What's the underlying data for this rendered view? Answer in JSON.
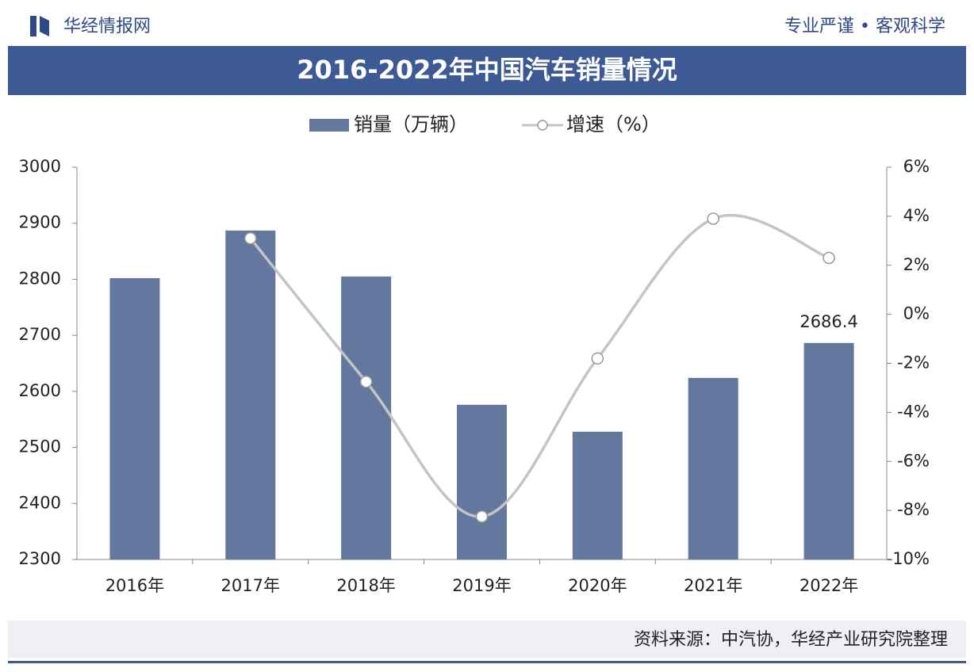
{
  "header": {
    "brand": "华经情报网",
    "slogan": "专业严谨 • 客观科学"
  },
  "chart_data": {
    "type": "bar_line",
    "title": "2016-2022年中国汽车销量情况",
    "categories": [
      "2016年",
      "2017年",
      "2018年",
      "2019年",
      "2020年",
      "2021年",
      "2022年"
    ],
    "series": [
      {
        "name": "销量（万辆）",
        "color": "#63779f",
        "values": [
          2802,
          2887,
          2805,
          2576,
          2528,
          2624,
          2686.4
        ]
      },
      {
        "name": "增速（%）",
        "color": "#c4c4c4",
        "axis": "y2",
        "values": [
          null,
          3.1,
          -2.75,
          -8.25,
          -1.8,
          3.9,
          2.3
        ]
      }
    ],
    "ylim": [
      2300,
      3000
    ],
    "yticks": [
      2300,
      2400,
      2500,
      2600,
      2700,
      2800,
      2900,
      3000
    ],
    "y2lim": [
      -10,
      6
    ],
    "y2ticks": [
      {
        "value": -10,
        "label": "-10%"
      },
      {
        "value": -8,
        "label": "-8%"
      },
      {
        "value": -6,
        "label": "-6%"
      },
      {
        "value": -4,
        "label": "-4%"
      },
      {
        "value": -2,
        "label": "-2%"
      },
      {
        "value": 0,
        "label": "0%"
      },
      {
        "value": 2,
        "label": "2%"
      },
      {
        "value": 4,
        "label": "4%"
      },
      {
        "value": 6,
        "label": "6%"
      }
    ],
    "legend": "top"
  },
  "footer": {
    "source": "资料来源：中汽协，华经产业研究院整理"
  }
}
